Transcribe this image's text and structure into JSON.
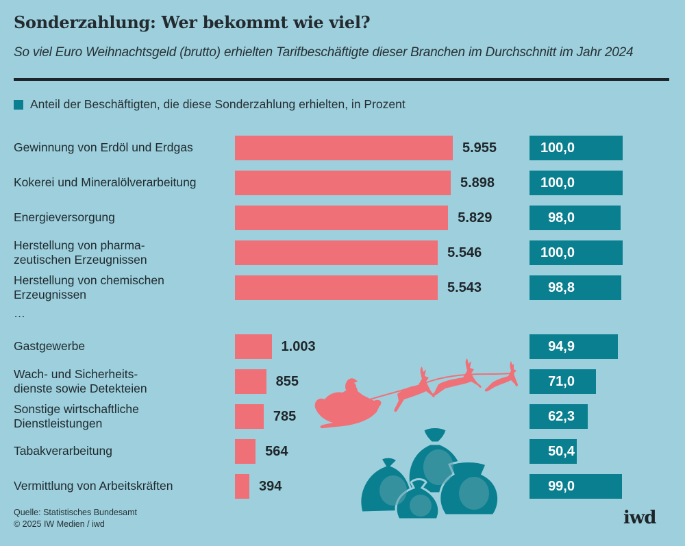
{
  "header": {
    "title": "Sonderzahlung: Wer bekommt wie viel?",
    "subtitle": "So viel Euro Weihnachtsgeld (brutto) erhielten Tarifbeschäftigte dieser Branchen im Durchschnitt im Jahr 2024"
  },
  "legend": {
    "label": "Anteil der Beschäftigten, die diese Sonderzahlung erhielten, in Prozent",
    "color": "#0a7f90"
  },
  "separator_text": "…",
  "footer": {
    "source": "Quelle: Statistisches Bundesamt",
    "copyright": "© 2025 IW Medien / iwd",
    "logo": "iwd"
  },
  "illustrations": [
    "santa-sleigh-reindeer",
    "money-bags"
  ],
  "chart_data": {
    "type": "bar",
    "orientation": "horizontal",
    "title": "Sonderzahlung: Wer bekommt wie viel?",
    "subtitle": "So viel Euro Weihnachtsgeld (brutto) erhielten Tarifbeschäftigte dieser Branchen im Durchschnitt im Jahr 2024",
    "categories": [
      [
        "Gewinnung von Erdöl und Erdgas"
      ],
      [
        "Kokerei und Mineralölverarbeitung"
      ],
      [
        "Energieversorgung"
      ],
      [
        "Herstellung von pharma-",
        "zeutischen Erzeugnissen"
      ],
      [
        "Herstellung von chemischen",
        "Erzeugnissen"
      ],
      [
        "Gastgewerbe"
      ],
      [
        "Wach- und Sicherheits-",
        "dienste sowie Detekteien"
      ],
      [
        "Sonstige wirtschaftliche",
        "Dienstleistungen"
      ],
      [
        "Tabakverarbeitung"
      ],
      [
        "Vermittlung von Arbeitskräften"
      ]
    ],
    "gap_after_index": 4,
    "series": [
      {
        "name": "Weihnachtsgeld in Euro (brutto)",
        "color": "#f07078",
        "values": [
          5955,
          5898,
          5829,
          5546,
          5543,
          1003,
          855,
          785,
          564,
          394
        ],
        "labels": [
          "5.955",
          "5.898",
          "5.829",
          "5.546",
          "5.543",
          "1.003",
          "855",
          "785",
          "564",
          "394"
        ]
      },
      {
        "name": "Anteil der Beschäftigten, die diese Sonderzahlung erhielten, in Prozent",
        "color": "#0a7f90",
        "values": [
          100.0,
          100.0,
          98.0,
          100.0,
          98.8,
          94.9,
          71.0,
          62.3,
          50.4,
          99.0
        ],
        "labels": [
          "100,0",
          "100,0",
          "98,0",
          "100,0",
          "98,8",
          "94,9",
          "71,0",
          "62,3",
          "50,4",
          "99,0"
        ]
      }
    ],
    "xlabel": "",
    "ylabel": "",
    "grid": false,
    "legend_position": "top-left"
  }
}
